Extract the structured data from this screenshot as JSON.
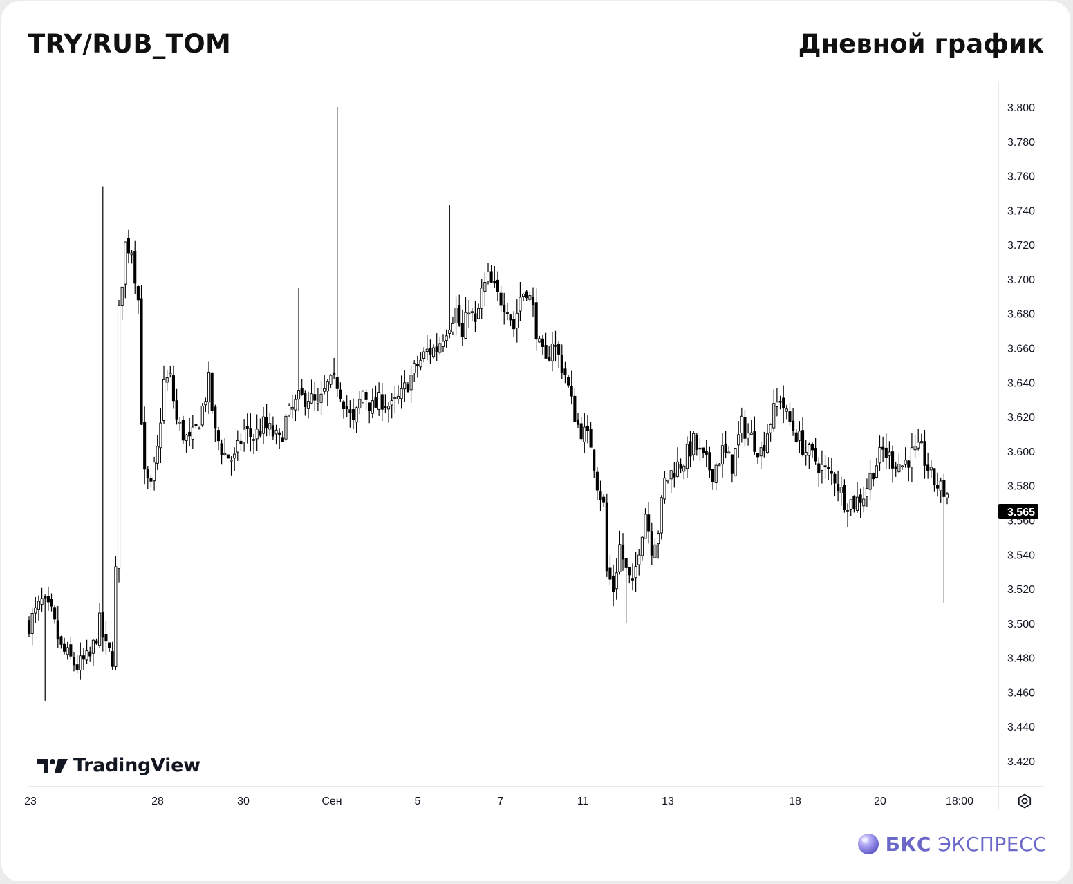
{
  "header": {
    "symbol": "TRY/RUB_TOM",
    "timeframe_label": "Дневной график"
  },
  "watermark": {
    "label": "TradingView",
    "icon": "tradingview-logo-icon"
  },
  "brand": {
    "bold": "БКС",
    "regular": "ЭКСПРЕСС",
    "icon": "bcs-sphere-icon",
    "color": "#6b68c9"
  },
  "settings": {
    "icon": "gear-icon"
  },
  "chart_data": {
    "type": "candlestick",
    "x_ticks": [
      "23",
      "28",
      "30",
      "Сен",
      "5",
      "7",
      "11",
      "13",
      "18",
      "20",
      "18:00"
    ],
    "y_ticks": [
      "3.420",
      "3.440",
      "3.460",
      "3.480",
      "3.500",
      "3.520",
      "3.540",
      "3.560",
      "3.580",
      "3.600",
      "3.620",
      "3.640",
      "3.660",
      "3.680",
      "3.700",
      "3.720",
      "3.740",
      "3.760",
      "3.780",
      "3.800"
    ],
    "ylim": [
      3.405,
      3.815
    ],
    "last_price": "3.565",
    "colors": {
      "up": "#ffffff",
      "down": "#000000",
      "wick": "#000000",
      "axis_text": "#131722"
    },
    "control_points": [
      [
        0,
        3.5
      ],
      [
        4,
        3.512
      ],
      [
        7,
        3.505
      ],
      [
        10,
        3.485
      ],
      [
        15,
        3.475
      ],
      [
        19,
        3.48
      ],
      [
        22,
        3.5
      ],
      [
        24,
        3.485
      ],
      [
        26,
        3.48
      ],
      [
        27,
        3.53
      ],
      [
        28,
        3.68
      ],
      [
        30,
        3.72
      ],
      [
        32,
        3.718
      ],
      [
        34,
        3.688
      ],
      [
        35,
        3.62
      ],
      [
        36,
        3.585
      ],
      [
        38,
        3.578
      ],
      [
        40,
        3.6
      ],
      [
        42,
        3.64
      ],
      [
        44,
        3.642
      ],
      [
        46,
        3.618
      ],
      [
        48,
        3.61
      ],
      [
        50,
        3.605
      ],
      [
        52,
        3.612
      ],
      [
        54,
        3.625
      ],
      [
        56,
        3.64
      ],
      [
        58,
        3.61
      ],
      [
        61,
        3.598
      ],
      [
        64,
        3.595
      ],
      [
        67,
        3.612
      ],
      [
        70,
        3.608
      ],
      [
        73,
        3.615
      ],
      [
        76,
        3.61
      ],
      [
        78,
        3.605
      ],
      [
        80,
        3.618
      ],
      [
        84,
        3.63
      ],
      [
        87,
        3.632
      ],
      [
        90,
        3.625
      ],
      [
        93,
        3.638
      ],
      [
        96,
        3.64
      ],
      [
        99,
        3.625
      ],
      [
        101,
        3.615
      ],
      [
        104,
        3.635
      ],
      [
        107,
        3.625
      ],
      [
        110,
        3.63
      ],
      [
        113,
        3.625
      ],
      [
        116,
        3.632
      ],
      [
        118,
        3.64
      ],
      [
        121,
        3.65
      ],
      [
        124,
        3.658
      ],
      [
        127,
        3.66
      ],
      [
        130,
        3.672
      ],
      [
        133,
        3.682
      ],
      [
        135,
        3.665
      ],
      [
        137,
        3.685
      ],
      [
        139,
        3.672
      ],
      [
        141,
        3.692
      ],
      [
        143,
        3.7
      ],
      [
        146,
        3.69
      ],
      [
        149,
        3.685
      ],
      [
        151,
        3.672
      ],
      [
        153,
        3.69
      ],
      [
        155,
        3.695
      ],
      [
        157,
        3.682
      ],
      [
        159,
        3.66
      ],
      [
        161,
        3.65
      ],
      [
        163,
        3.665
      ],
      [
        165,
        3.655
      ],
      [
        167,
        3.645
      ],
      [
        169,
        3.628
      ],
      [
        171,
        3.615
      ],
      [
        173,
        3.61
      ],
      [
        175,
        3.605
      ],
      [
        177,
        3.582
      ],
      [
        179,
        3.568
      ],
      [
        180,
        3.53
      ],
      [
        182,
        3.52
      ],
      [
        184,
        3.545
      ],
      [
        186,
        3.53
      ],
      [
        188,
        3.52
      ],
      [
        190,
        3.545
      ],
      [
        192,
        3.565
      ],
      [
        194,
        3.545
      ],
      [
        196,
        3.555
      ],
      [
        198,
        3.582
      ],
      [
        201,
        3.59
      ],
      [
        204,
        3.595
      ],
      [
        207,
        3.605
      ],
      [
        210,
        3.595
      ],
      [
        213,
        3.588
      ],
      [
        216,
        3.6
      ],
      [
        219,
        3.592
      ],
      [
        222,
        3.615
      ],
      [
        225,
        3.608
      ],
      [
        228,
        3.6
      ],
      [
        231,
        3.618
      ],
      [
        234,
        3.632
      ],
      [
        236,
        3.62
      ],
      [
        239,
        3.61
      ],
      [
        242,
        3.6
      ],
      [
        245,
        3.595
      ],
      [
        248,
        3.588
      ],
      [
        251,
        3.585
      ],
      [
        254,
        3.572
      ],
      [
        257,
        3.57
      ],
      [
        260,
        3.575
      ],
      [
        263,
        3.59
      ],
      [
        266,
        3.6
      ],
      [
        269,
        3.595
      ],
      [
        272,
        3.592
      ],
      [
        275,
        3.598
      ],
      [
        278,
        3.6
      ],
      [
        281,
        3.585
      ],
      [
        284,
        3.578
      ],
      [
        286,
        3.575
      ]
    ]
  }
}
